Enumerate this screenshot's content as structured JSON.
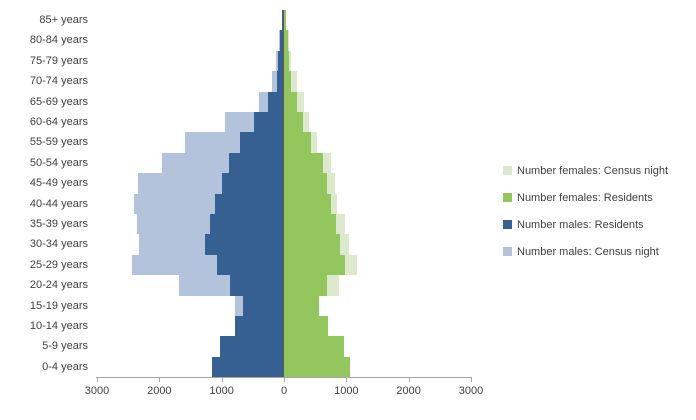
{
  "chart_data": {
    "type": "bar",
    "subtype": "population-pyramid",
    "title": "",
    "xlabel": "",
    "ylabel": "",
    "grid": false,
    "legend_position": "right",
    "categories": [
      "85+ years",
      "80-84 years",
      "75-79 years",
      "70-74 years",
      "65-69 years",
      "60-64 years",
      "55-59 years",
      "50-54 years",
      "45-49 years",
      "40-44 years",
      "35-39 years",
      "30-34 years",
      "25-29 years",
      "20-24 years",
      "15-19 years",
      "10-14 years",
      "5-9 years",
      "0-4 years"
    ],
    "x_axis": {
      "tick_labels": [
        "3000",
        "2000",
        "1000",
        "0",
        "1000",
        "2000",
        "3000"
      ],
      "tick_values": [
        -3000,
        -2000,
        -1000,
        0,
        1000,
        2000,
        3000
      ],
      "max_each_side": 3000
    },
    "series": [
      {
        "name": "Number females: Census night",
        "side": "right",
        "color": "#dce9cd",
        "values": [
          40,
          80,
          105,
          210,
          320,
          400,
          535,
          755,
          820,
          845,
          980,
          1050,
          1165,
          890,
          550,
          695,
          940,
          1045
        ]
      },
      {
        "name": "Number females: Residents",
        "side": "right",
        "color": "#94c65e",
        "values": [
          30,
          65,
          75,
          120,
          215,
          310,
          430,
          620,
          685,
          750,
          835,
          900,
          985,
          685,
          565,
          710,
          955,
          1060
        ]
      },
      {
        "name": "Number males: Residents",
        "side": "left",
        "color": "#366092",
        "values": [
          30,
          65,
          90,
          120,
          250,
          480,
          705,
          880,
          1000,
          1100,
          1185,
          1265,
          1075,
          860,
          660,
          785,
          1025,
          1150
        ]
      },
      {
        "name": "Number males: Census night",
        "side": "left",
        "color": "#b3c3dc",
        "values": [
          35,
          75,
          135,
          200,
          395,
          945,
          1590,
          1955,
          2340,
          2410,
          2365,
          2330,
          2440,
          1690,
          785,
          770,
          1010,
          1135
        ]
      }
    ]
  },
  "legend": {
    "order": [
      0,
      1,
      2,
      3
    ]
  }
}
